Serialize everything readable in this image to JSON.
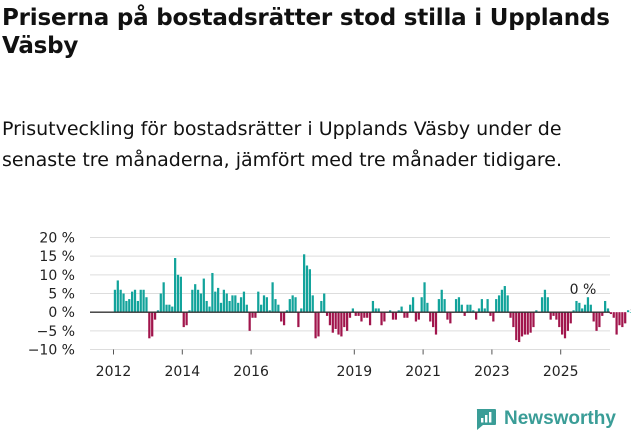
{
  "header": {
    "title": "Priserna på bostadsrätter stod stilla i Upplands Väsby",
    "subtitle": "Prisutveckling för bostadsrätter i Upplands Väsby under de senaste tre månaderna, jämfört med tre månader tidigare."
  },
  "brand": {
    "name": "Newsworthy"
  },
  "colors": {
    "positive": "#12a39b",
    "negative": "#a1154c",
    "grid": "#dddddd",
    "zero": "#333333",
    "brand": "#3a9d97"
  },
  "chart_data": {
    "type": "bar",
    "ylabel": "",
    "ylim": [
      -10,
      20
    ],
    "y_ticks": [
      -10,
      -5,
      0,
      5,
      10,
      15,
      20
    ],
    "y_tick_labels": [
      "−10 %",
      "−5 %",
      "0 %",
      "5 %",
      "10 %",
      "15 %",
      "20 %"
    ],
    "x_tick_labels": [
      "2012",
      "2014",
      "2016",
      "2019",
      "2021",
      "2023",
      "2025"
    ],
    "x_tick_dates": [
      2012.0,
      2014.0,
      2016.0,
      2019.0,
      2021.0,
      2023.0,
      2025.0
    ],
    "start": 2012.0,
    "step_months": 1,
    "annotation": {
      "label": "0 %",
      "value": 0
    },
    "values": [
      6,
      8.5,
      6,
      5,
      3,
      3.5,
      5.5,
      6,
      3,
      6,
      6,
      4,
      -7,
      -6.5,
      -2,
      0.5,
      5,
      8,
      2,
      2,
      1.5,
      14.5,
      10,
      9.5,
      -4,
      -3.5,
      0.5,
      6,
      7.5,
      6,
      5,
      9,
      3,
      1.5,
      10.5,
      5.5,
      6.5,
      2.5,
      6,
      5,
      3,
      4.5,
      4.5,
      2.5,
      4,
      5.5,
      2,
      -5,
      -1.5,
      -1.5,
      5.5,
      2,
      4.5,
      4,
      0.5,
      8,
      3.5,
      2,
      -2.5,
      -3.5,
      0.5,
      3.5,
      4.5,
      4,
      -4,
      1,
      15.5,
      12.5,
      11.5,
      4.5,
      -7,
      -6.5,
      3,
      5,
      -1,
      -3.5,
      -5.5,
      -4.5,
      -6,
      -6.5,
      -4,
      -5,
      -1.5,
      1,
      -1,
      -1,
      -2.5,
      -1.5,
      -1.5,
      -3.5,
      3,
      1,
      1,
      -3.5,
      -2.5,
      0,
      0.5,
      -2,
      -2,
      0.5,
      1.5,
      -1.5,
      -1.5,
      2,
      4,
      -2.5,
      -2,
      4,
      8,
      2.5,
      -2.5,
      -4,
      -6,
      3.5,
      6,
      3.5,
      -2,
      -3,
      0,
      3.5,
      4,
      2,
      -1,
      2,
      2,
      0.5,
      -2,
      1,
      3.5,
      1,
      3.5,
      -1,
      -2.5,
      3.5,
      4.5,
      6,
      7,
      4.5,
      -1.5,
      -4,
      -7.5,
      -8,
      -6.5,
      -6,
      -6,
      -5.5,
      -4,
      0.5,
      0,
      4,
      6,
      4,
      -2,
      -1,
      -2,
      -4,
      -6,
      -7,
      -5,
      -3,
      0.5,
      3,
      2.5,
      1,
      2,
      4,
      2,
      -2.5,
      -5,
      -4,
      -1,
      3,
      1,
      -0.5,
      -1.5,
      -6,
      -3.5,
      -4,
      -3,
      0.5,
      0
    ]
  }
}
